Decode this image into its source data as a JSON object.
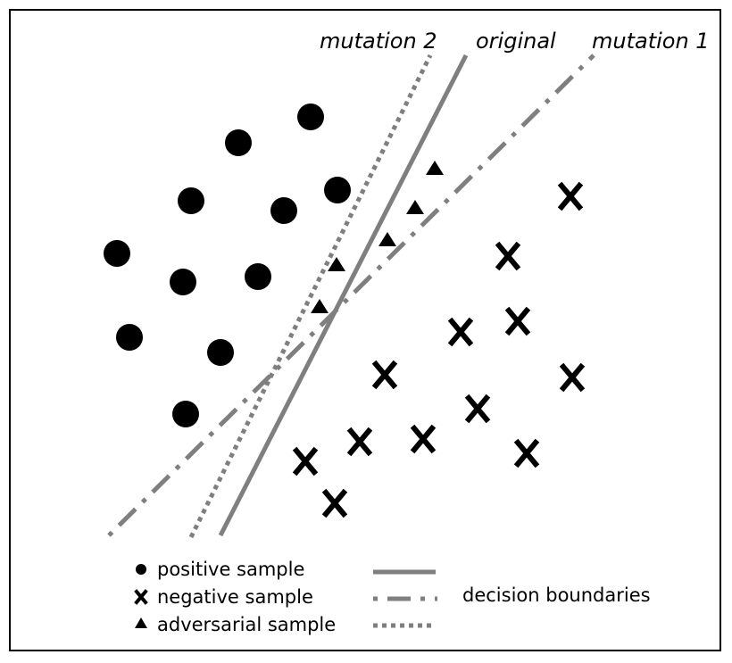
{
  "labels": {
    "mutation2": "mutation 2",
    "original": "original",
    "mutation1": "mutation 1"
  },
  "legend": {
    "positive": "positive sample",
    "negative": "negative sample",
    "adversarial": "adversarial sample",
    "boundaries": "decision boundaries"
  },
  "colors": {
    "line": "#7f7f7f",
    "marker": "#000000",
    "frame": "#000000"
  },
  "icons": {
    "positive": "circle-icon",
    "negative": "x-cross-icon",
    "adversarial": "triangle-icon"
  }
}
